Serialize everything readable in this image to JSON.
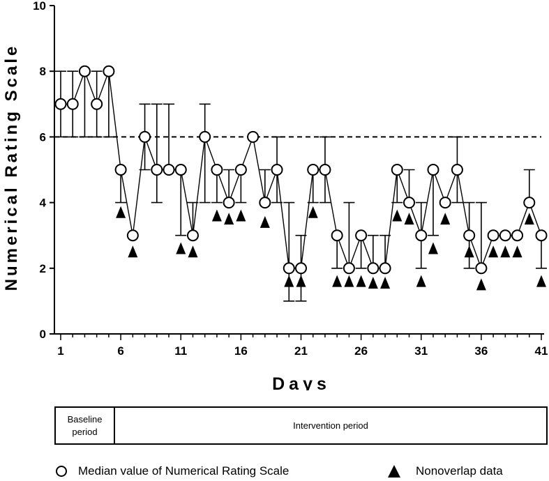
{
  "chart_data": {
    "type": "line",
    "xlabel": "Days",
    "ylabel": "Numerical Rating Scale",
    "xlim": [
      1,
      41
    ],
    "ylim": [
      0,
      10
    ],
    "x_ticks": [
      1,
      6,
      11,
      16,
      21,
      26,
      31,
      36,
      41
    ],
    "y_ticks": [
      0,
      2,
      4,
      6,
      8,
      10
    ],
    "reference_line": {
      "y": 6,
      "style": "dashed"
    },
    "series": [
      {
        "name": "Median value of Numerical Rating Scale",
        "marker": "open-circle",
        "x": [
          1,
          2,
          3,
          4,
          5,
          6,
          7,
          8,
          9,
          10,
          11,
          12,
          13,
          14,
          15,
          16,
          17,
          18,
          19,
          20,
          21,
          22,
          23,
          24,
          25,
          26,
          27,
          28,
          29,
          30,
          31,
          32,
          33,
          34,
          35,
          36,
          37,
          38,
          39,
          40,
          41
        ],
        "values": [
          7,
          7,
          8,
          7,
          8,
          5,
          3,
          6,
          5,
          5,
          5,
          3,
          6,
          5,
          4,
          5,
          6,
          4,
          5,
          2,
          2,
          5,
          5,
          3,
          2,
          3,
          2,
          2,
          5,
          4,
          3,
          5,
          4,
          5,
          3,
          2,
          3,
          3,
          3,
          4,
          3
        ],
        "error_low": [
          6,
          6,
          6,
          6,
          6,
          4,
          3,
          5,
          4,
          5,
          3,
          3,
          4,
          4,
          4,
          4,
          6,
          4,
          4,
          1,
          1,
          4,
          4,
          2,
          2,
          2,
          2,
          2,
          4,
          4,
          2,
          3,
          4,
          4,
          2,
          2,
          3,
          3,
          3,
          4,
          2
        ],
        "error_high": [
          8,
          8,
          8,
          8,
          8,
          5,
          3,
          7,
          7,
          7,
          5,
          4,
          7,
          5,
          5,
          5,
          6,
          5,
          6,
          4,
          3,
          5,
          6,
          3,
          4,
          3,
          3,
          3,
          5,
          5,
          4,
          5,
          4,
          6,
          4,
          4,
          3,
          3,
          3,
          5,
          3
        ]
      },
      {
        "name": "Nonoverlap data",
        "marker": "filled-triangle",
        "x": [
          6,
          7,
          11,
          12,
          14,
          15,
          16,
          18,
          20,
          21,
          22,
          24,
          25,
          26,
          27,
          28,
          29,
          30,
          31,
          32,
          33,
          35,
          36,
          37,
          38,
          39,
          40,
          41
        ],
        "values": [
          3.7,
          2.5,
          2.6,
          2.5,
          3.6,
          3.5,
          3.6,
          3.4,
          1.6,
          1.6,
          3.7,
          1.6,
          1.6,
          1.6,
          1.55,
          1.55,
          3.6,
          3.5,
          1.6,
          2.6,
          3.5,
          2.5,
          1.5,
          2.5,
          2.5,
          2.5,
          3.5,
          1.6
        ]
      }
    ],
    "periods": [
      {
        "label": "Baseline period",
        "days": [
          1,
          5
        ]
      },
      {
        "label": "Intervention period",
        "days": [
          6,
          41
        ]
      }
    ]
  },
  "legend": {
    "median_label": "Median value of Numerical Rating Scale",
    "nonoverlap_label": "Nonoverlap data"
  }
}
